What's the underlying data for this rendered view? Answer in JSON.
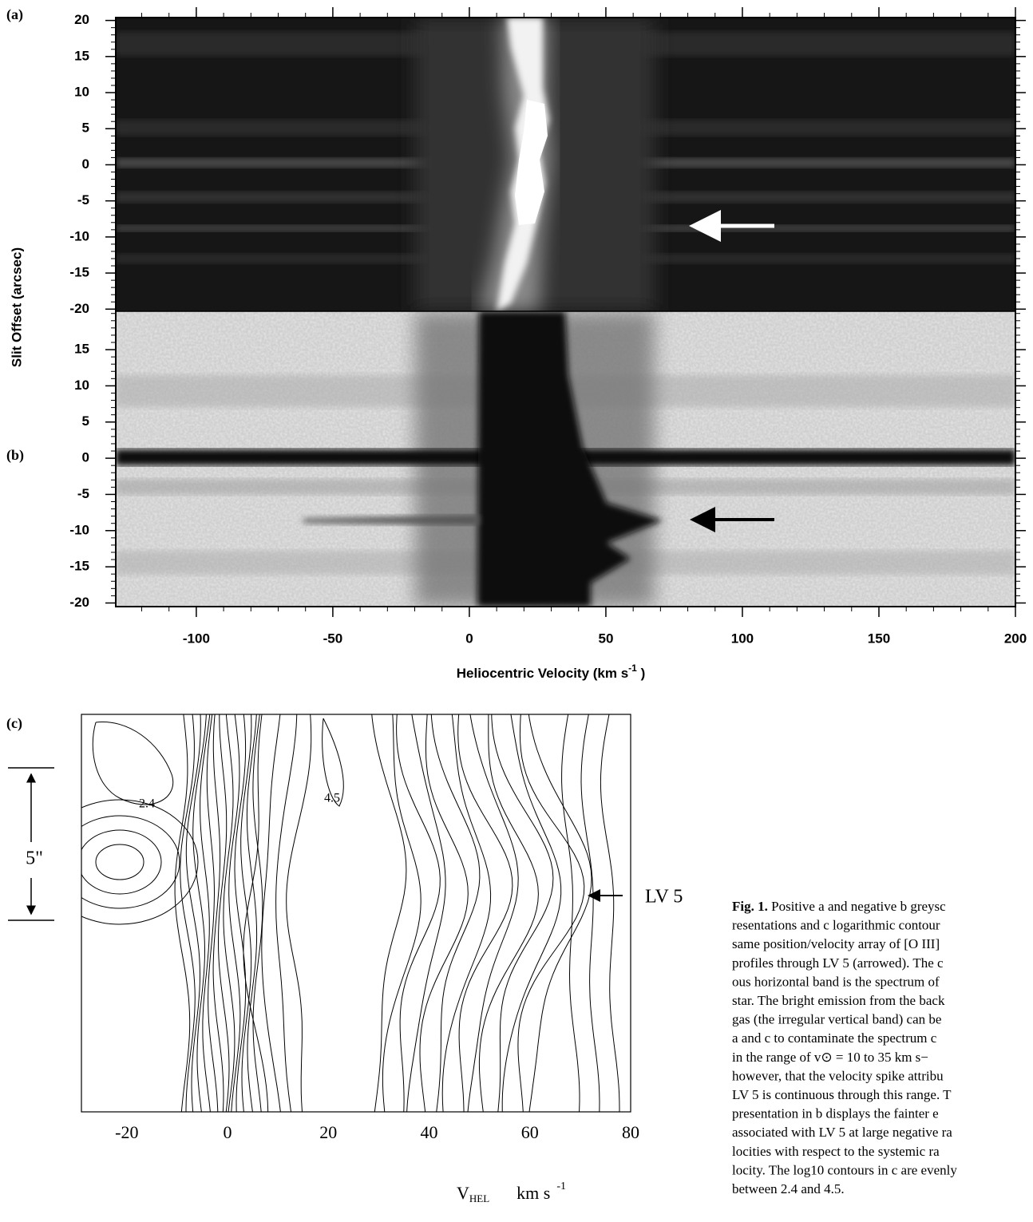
{
  "chart_data": [
    {
      "type": "image",
      "label": "(a)",
      "ylabel": "Slit Offset  (arcsec)",
      "xlim": [
        -129.5,
        200
      ],
      "ylim": [
        -20.3,
        20.4
      ],
      "yticks": [
        20,
        15,
        10,
        5,
        0,
        -5,
        -10,
        -15,
        -20
      ]
    },
    {
      "type": "image",
      "label": "(b)",
      "xlabel": {
        "text": "Heliocentric Velocity  (km s",
        "superscript": "-1",
        "suffix": " )"
      },
      "xlim": [
        -129.5,
        200
      ],
      "ylim": [
        -20.5,
        20.3
      ],
      "xticks": [
        -100,
        -50,
        0,
        50,
        100,
        150,
        200
      ],
      "yticks": [
        15,
        10,
        5,
        0,
        -5,
        -10,
        -15,
        -20
      ]
    },
    {
      "type": "contour",
      "label": "(c)",
      "xlabel": {
        "text": "V",
        "subscript": "HEL",
        "unit": "km  s",
        "superscript": "-1"
      },
      "xlim": [
        -29,
        80
      ],
      "xticks": [
        -20,
        0,
        20,
        40,
        60,
        80
      ],
      "contour_labels": [
        2.4,
        4.5
      ],
      "scale_label": "5\"",
      "arrow_label": "LV 5"
    }
  ],
  "caption": {
    "label": "Fig. 1.",
    "lines": [
      " Positive a and negative b greysc",
      "resentations and c logarithmic contour",
      "same position/velocity array of [O III]",
      "profiles through LV 5 (arrowed). The c",
      "ous horizontal band is the spectrum of",
      "star. The bright emission from the back",
      "gas (the irregular vertical band) can be",
      "a and c to contaminate the spectrum c",
      "in the range of v⊙ = 10 to 35 km s−",
      "however, that the velocity spike attribu",
      "LV 5 is continuous through this range. T",
      "presentation in b displays the fainter e",
      "associated with LV 5 at large negative ra",
      "locities with respect to the systemic ra",
      "locity. The log10 contours in c are evenly",
      "between 2.4 and 4.5."
    ]
  }
}
